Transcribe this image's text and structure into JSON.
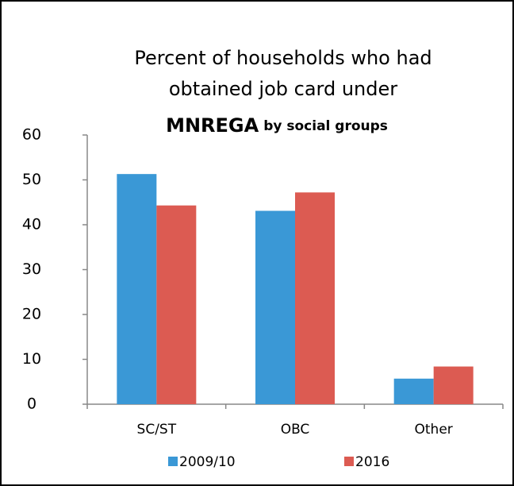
{
  "chart_data": {
    "type": "bar",
    "title_lines": [
      "Percent of  households who had",
      "obtained job card under"
    ],
    "title_emphasis": "MNREGA",
    "title_tail": "by social groups",
    "categories": [
      "SC/ST",
      "OBC",
      "Other"
    ],
    "series": [
      {
        "name": "2009/10",
        "color": "#3a98d6",
        "values": [
          51.3,
          43.1,
          5.7
        ]
      },
      {
        "name": "2016",
        "color": "#dc5b52",
        "values": [
          44.3,
          47.2,
          8.4
        ]
      }
    ],
    "ylim": [
      0,
      60
    ],
    "yticks": [
      0,
      10,
      20,
      30,
      40,
      50,
      60
    ],
    "grid": false,
    "legend": "bottom"
  }
}
